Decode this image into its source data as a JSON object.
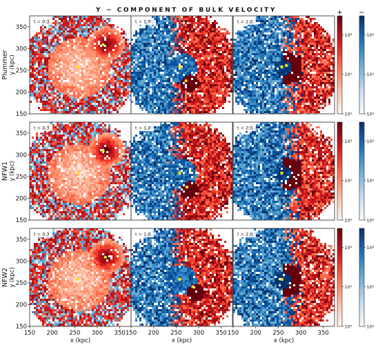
{
  "title": "Y − COMPONENT OF BULK VELOCITY",
  "chart_data": {
    "type": "heatmap",
    "title": "Y − COMPONENT OF BULK VELOCITY",
    "xlabel": "x (kpc)",
    "ylabel": "y (kpc)",
    "xlim": [
      150,
      375
    ],
    "ylim": [
      150,
      375
    ],
    "x_ticks": [
      "150",
      "200",
      "250",
      "300",
      "350"
    ],
    "y_ticks": [
      "150",
      "200",
      "250",
      "300",
      "350"
    ],
    "rows": [
      {
        "label": "Plummer",
        "panels": [
          {
            "time_label": "t = 0.3",
            "markers": [
              [
                258,
                258
              ],
              [
                313,
                309
              ]
            ]
          },
          {
            "time_label": "t = 1.0",
            "markers": [
              [
                258,
                258
              ],
              [
                272,
                226
              ]
            ]
          },
          {
            "time_label": "t = 2.0",
            "markers": [
              [
                258,
                258
              ],
              [
                268,
                261
              ]
            ]
          }
        ]
      },
      {
        "label": "NFW1",
        "panels": [
          {
            "time_label": "t = 0.3",
            "markers": [
              [
                258,
                258
              ],
              [
                313,
                309
              ]
            ]
          },
          {
            "time_label": "t = 1.0",
            "markers": [
              [
                258,
                258
              ],
              [
                274,
                226
              ]
            ]
          },
          {
            "time_label": "t = 2.0",
            "markers": [
              [
                258,
                258
              ]
            ]
          }
        ]
      },
      {
        "label": "NFW2",
        "panels": [
          {
            "time_label": "t = 0.3",
            "markers": [
              [
                258,
                258
              ],
              [
                318,
                309
              ]
            ]
          },
          {
            "time_label": "t = 1.0",
            "markers": [
              [
                258,
                258
              ],
              [
                287,
                241
              ]
            ]
          },
          {
            "time_label": "t = 2.0",
            "markers": [
              [
                258,
                258
              ]
            ]
          }
        ]
      }
    ],
    "colorbars": [
      {
        "sign": "+",
        "cmap": "Reds",
        "ticks": [
          "10²",
          "10¹",
          "10⁰"
        ],
        "tick_values": [
          100,
          10,
          1
        ],
        "range": [
          1,
          300
        ],
        "scale": "log"
      },
      {
        "sign": "−",
        "cmap": "Blues",
        "ticks": [
          "10²",
          "10¹",
          "10⁰"
        ],
        "tick_values": [
          100,
          10,
          1
        ],
        "range": [
          1,
          300
        ],
        "scale": "log"
      }
    ],
    "marker_color": "#f5e51b",
    "positive_color": "#b2182b",
    "negative_color": "#2166ac"
  }
}
